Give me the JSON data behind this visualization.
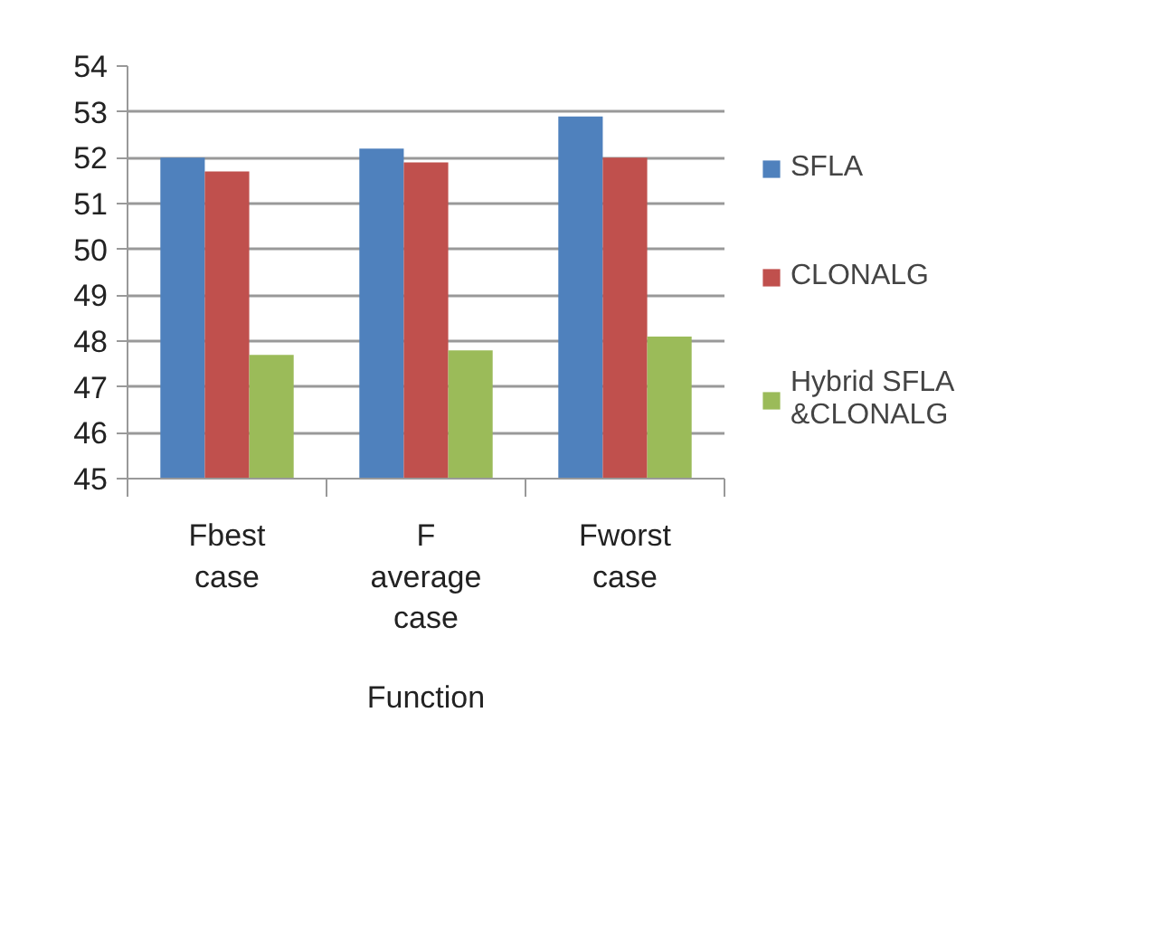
{
  "chart_data": {
    "type": "bar",
    "categories": [
      "Fbest case",
      "F average case",
      "Fworst case"
    ],
    "xlabel": "Function",
    "series": [
      {
        "name": "SFLA",
        "color": "#4f81bd",
        "values": [
          52.0,
          52.2,
          52.9
        ]
      },
      {
        "name": "CLONALG",
        "color": "#c0504d",
        "values": [
          51.7,
          51.9,
          52.0
        ]
      },
      {
        "name": "Hybrid SFLA &CLONALG",
        "color": "#9bbb59",
        "values": [
          47.7,
          47.8,
          48.1
        ]
      }
    ],
    "ylim": [
      45,
      54
    ],
    "yticks": [
      45,
      46,
      47,
      48,
      49,
      50,
      51,
      52,
      53,
      54
    ],
    "grid": "y",
    "legend": "right"
  }
}
